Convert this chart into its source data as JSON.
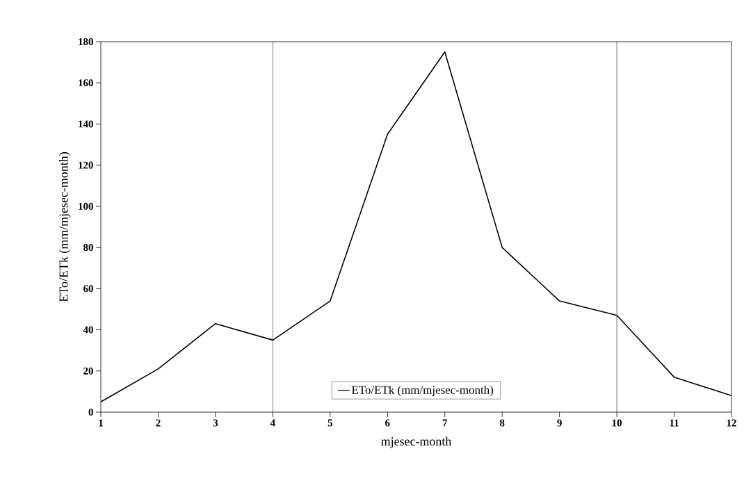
{
  "chart_data": {
    "type": "line",
    "xlabel": "mjesec-month",
    "ylabel": "ETo/ETk (mm/mjesec-month)",
    "x": [
      1,
      2,
      3,
      4,
      5,
      6,
      7,
      8,
      9,
      10,
      11,
      12
    ],
    "series": [
      {
        "name": "ETo/ETk (mm/mjesec-month)",
        "color": "#000000",
        "values": [
          5,
          21,
          43,
          35,
          54,
          135,
          175,
          80,
          54,
          47,
          17,
          8
        ]
      }
    ],
    "xlim": [
      1,
      12
    ],
    "xticks": [
      1,
      2,
      3,
      4,
      5,
      6,
      7,
      8,
      9,
      10,
      11,
      12
    ],
    "ylim": [
      0,
      180
    ],
    "yticks": [
      0,
      20,
      40,
      60,
      80,
      100,
      120,
      140,
      160,
      180
    ],
    "ref_lines": [
      {
        "axis": "x",
        "value": 4
      },
      {
        "axis": "x",
        "value": 10
      }
    ],
    "legend": "bottom",
    "marker": "none",
    "line_style": "solid",
    "grid": false
  }
}
